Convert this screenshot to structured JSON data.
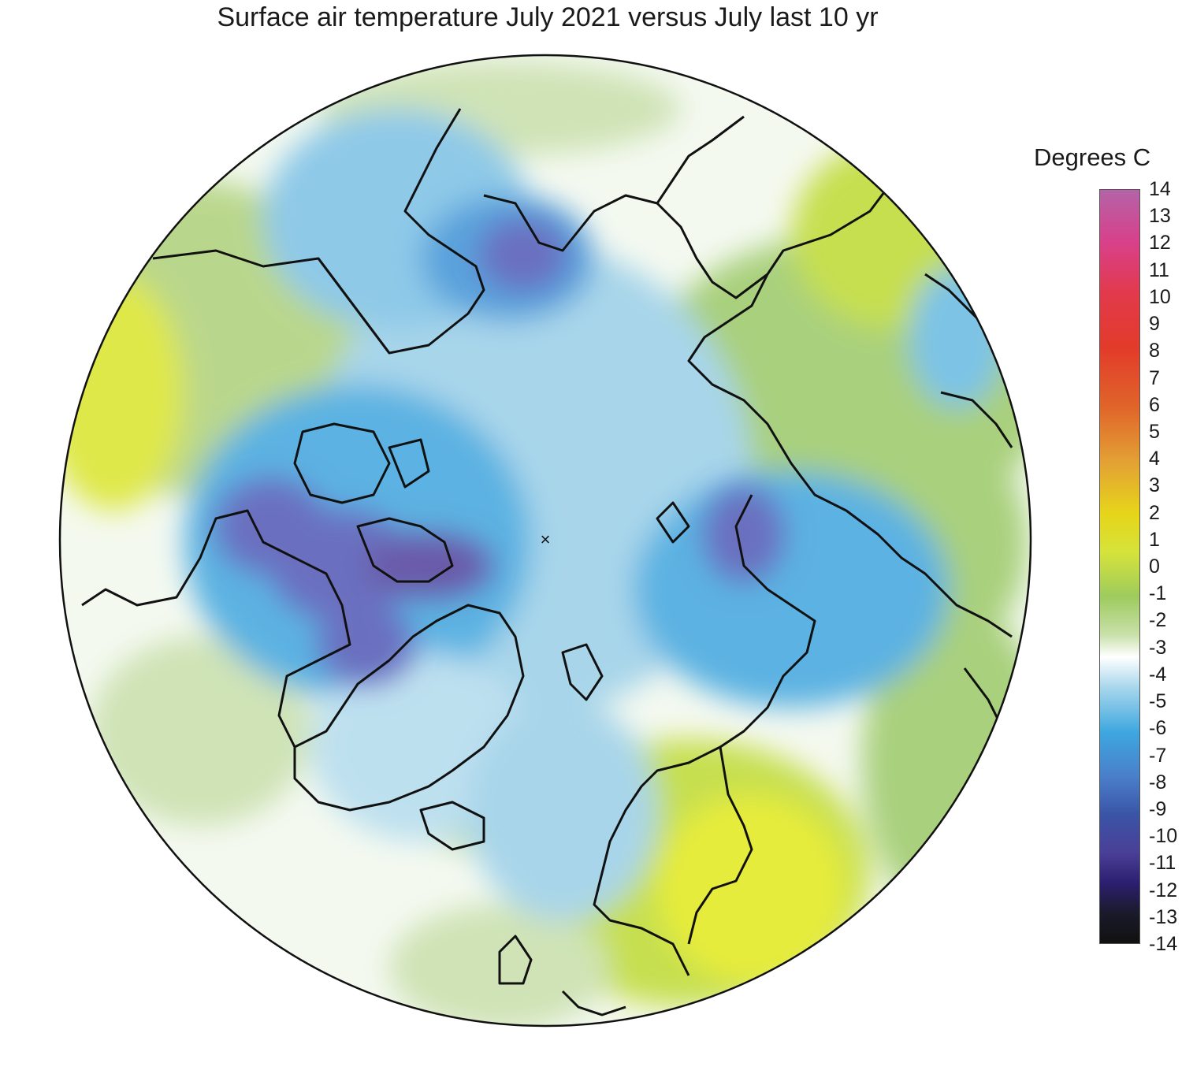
{
  "title": "Surface air temperature July 2021 versus July last 10 yr",
  "legend": {
    "title": "Degrees C",
    "ticks": [
      "14",
      "13",
      "12",
      "11",
      "10",
      "9",
      "8",
      "7",
      "6",
      "5",
      "4",
      "3",
      "2",
      "1",
      "0",
      "-1",
      "-2",
      "-3",
      "-4",
      "-5",
      "-6",
      "-7",
      "-8",
      "-9",
      "-10",
      "-11",
      "-12",
      "-13",
      "-14"
    ],
    "range": [
      -14,
      14
    ]
  },
  "map": {
    "projection": "north polar stereographic",
    "pole_marker": "×",
    "anomaly_colors": {
      "below_-4": "#6a5aa8",
      "-4": "#5b7fcf",
      "-3": "#4aa9e0",
      "-2": "#7cc3e6",
      "-1": "#bde0ef",
      "0": "#ffffff",
      "1": "#cfe3b6",
      "2": "#a9d07d",
      "3": "#c6df4f",
      "4": "#e6ec3a"
    }
  }
}
